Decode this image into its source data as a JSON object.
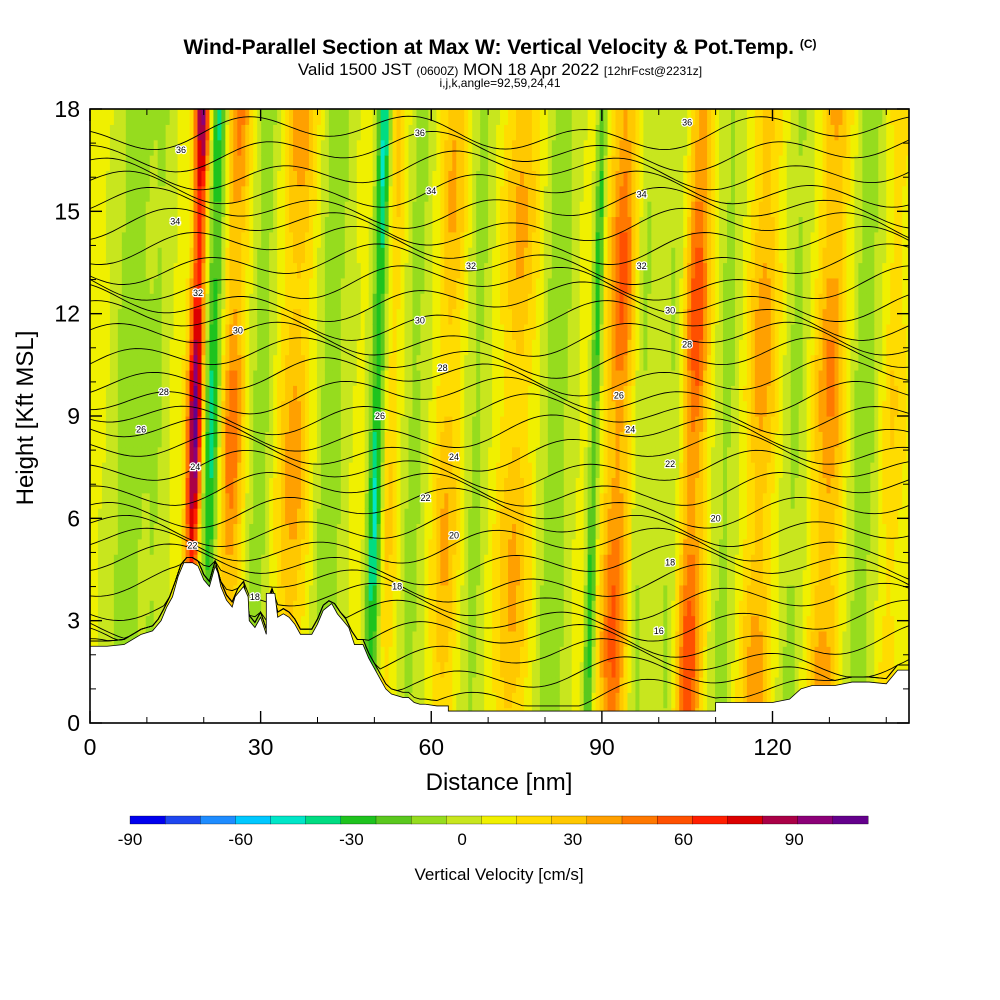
{
  "title": {
    "line1": "Wind-Parallel Section at Max W: Vertical Velocity & Pot.Temp.",
    "copyright": "(C)",
    "line2_a": "Valid 1500 JST",
    "line2_b": "(0600Z)",
    "line2_c": "MON 18 Apr 2022",
    "line2_d": "[12hrFcst@2231z]",
    "line3": "i,j,k,angle=92,59,24,41"
  },
  "chart_data": {
    "type": "heatmap",
    "xlabel": "Distance [nm]",
    "ylabel": "Height [Kft MSL]",
    "xlim": [
      0,
      144
    ],
    "ylim": [
      0,
      18
    ],
    "xticks": [
      0,
      30,
      60,
      90,
      120
    ],
    "yticks": [
      0,
      3,
      6,
      9,
      12,
      15,
      18
    ],
    "colorbar": {
      "label": "Vertical Velocity [cm/s]",
      "range": [
        -90,
        110
      ],
      "ticks": [
        -90,
        -60,
        -30,
        0,
        30,
        60,
        90
      ],
      "colors": [
        "#0000ee",
        "#1e46f0",
        "#1e8cff",
        "#00c8ff",
        "#00e6c8",
        "#00dc82",
        "#1ec31e",
        "#5ac81e",
        "#96dc1e",
        "#c8e61e",
        "#f0f000",
        "#ffdc00",
        "#ffc800",
        "#ffa000",
        "#ff7800",
        "#ff5000",
        "#ff1e00",
        "#dc0000",
        "#aa0046",
        "#8c0078",
        "#64008c"
      ]
    },
    "velocity_bands": [
      {
        "x": 7,
        "w": 3.5,
        "v": -25
      },
      {
        "x": 12,
        "w": 2,
        "v": -15
      },
      {
        "x": 18.5,
        "w": 1.3,
        "v": 95
      },
      {
        "x": 21.5,
        "w": 1.6,
        "v": -55
      },
      {
        "x": 25,
        "w": 2.5,
        "v": 40
      },
      {
        "x": 30,
        "w": 3,
        "v": -25
      },
      {
        "x": 36,
        "w": 3.5,
        "v": 30
      },
      {
        "x": 42,
        "w": 3.5,
        "v": -25
      },
      {
        "x": 50.5,
        "w": 1.3,
        "v": -60
      },
      {
        "x": 53,
        "w": 2,
        "v": 20
      },
      {
        "x": 57,
        "w": 3,
        "v": -20
      },
      {
        "x": 63,
        "w": 2.5,
        "v": 25
      },
      {
        "x": 68,
        "w": 2.5,
        "v": -20
      },
      {
        "x": 75,
        "w": 3,
        "v": 25
      },
      {
        "x": 82,
        "w": 3,
        "v": -25
      },
      {
        "x": 88.8,
        "w": 0.9,
        "v": -45
      },
      {
        "x": 93,
        "w": 2.5,
        "v": 45
      },
      {
        "x": 97,
        "w": 2,
        "v": -20
      },
      {
        "x": 103,
        "w": 2.5,
        "v": -25
      },
      {
        "x": 106,
        "w": 2.5,
        "v": 55
      },
      {
        "x": 112,
        "w": 3,
        "v": -20
      },
      {
        "x": 118,
        "w": 3,
        "v": 30
      },
      {
        "x": 124,
        "w": 3,
        "v": -20
      },
      {
        "x": 130,
        "w": 3,
        "v": 35
      },
      {
        "x": 136,
        "w": 3,
        "v": -25
      },
      {
        "x": 141,
        "w": 2,
        "v": 15
      }
    ],
    "background_velocity": 12,
    "terrain": [
      [
        0,
        2.25
      ],
      [
        3,
        2.25
      ],
      [
        6,
        2.3
      ],
      [
        9,
        2.6
      ],
      [
        11,
        2.7
      ],
      [
        12.5,
        3.0
      ],
      [
        13.5,
        3.4
      ],
      [
        14.5,
        3.7
      ],
      [
        15.5,
        4.3
      ],
      [
        16.5,
        4.7
      ],
      [
        18,
        4.7
      ],
      [
        19,
        4.6
      ],
      [
        20,
        4.2
      ],
      [
        21,
        4.0
      ],
      [
        22,
        4.6
      ],
      [
        22.5,
        4.4
      ],
      [
        23,
        4.0
      ],
      [
        24,
        3.6
      ],
      [
        25,
        3.4
      ],
      [
        25.5,
        3.7
      ],
      [
        26,
        3.8
      ],
      [
        27,
        4.0
      ],
      [
        27.8,
        3.7
      ],
      [
        28,
        3.0
      ],
      [
        29,
        2.8
      ],
      [
        30,
        3.1
      ],
      [
        31,
        2.6
      ],
      [
        31,
        3.8
      ],
      [
        32.5,
        3.8
      ],
      [
        33,
        3.1
      ],
      [
        34,
        3.2
      ],
      [
        35,
        3.1
      ],
      [
        36,
        2.9
      ],
      [
        37,
        2.6
      ],
      [
        38,
        2.6
      ],
      [
        39,
        2.6
      ],
      [
        40,
        2.9
      ],
      [
        41,
        3.3
      ],
      [
        42.5,
        3.5
      ],
      [
        43.5,
        3.2
      ],
      [
        44.5,
        3.0
      ],
      [
        45.5,
        2.8
      ],
      [
        46.5,
        2.3
      ],
      [
        48,
        2.3
      ],
      [
        49,
        1.9
      ],
      [
        50,
        1.6
      ],
      [
        51,
        1.3
      ],
      [
        52,
        1.0
      ],
      [
        53,
        0.85
      ],
      [
        55,
        0.75
      ],
      [
        56,
        0.75
      ],
      [
        57,
        0.6
      ],
      [
        58,
        0.55
      ],
      [
        59,
        0.55
      ],
      [
        61,
        0.5
      ],
      [
        63,
        0.5
      ],
      [
        63,
        0.35
      ],
      [
        80,
        0.35
      ],
      [
        100,
        0.35
      ],
      [
        110,
        0.35
      ],
      [
        110,
        0.6
      ],
      [
        115,
        0.6
      ],
      [
        120,
        0.6
      ],
      [
        123,
        0.7
      ],
      [
        125,
        1.0
      ],
      [
        127,
        1.1
      ],
      [
        131,
        1.1
      ],
      [
        134,
        1.2
      ],
      [
        137,
        1.2
      ],
      [
        140,
        1.15
      ],
      [
        142,
        1.55
      ],
      [
        144,
        1.55
      ]
    ],
    "isentrope_values": [
      16,
      18,
      20,
      22,
      24,
      26,
      28,
      30,
      32,
      34,
      36
    ],
    "contour_labels": [
      {
        "text": "36",
        "x": 16,
        "y": 16.8
      },
      {
        "text": "36",
        "x": 58,
        "y": 17.3
      },
      {
        "text": "36",
        "x": 105,
        "y": 17.6
      },
      {
        "text": "34",
        "x": 15,
        "y": 14.7
      },
      {
        "text": "34",
        "x": 60,
        "y": 15.6
      },
      {
        "text": "34",
        "x": 97,
        "y": 15.5
      },
      {
        "text": "32",
        "x": 19,
        "y": 12.6
      },
      {
        "text": "32",
        "x": 67,
        "y": 13.4
      },
      {
        "text": "32",
        "x": 97,
        "y": 13.4
      },
      {
        "text": "30",
        "x": 26,
        "y": 11.5
      },
      {
        "text": "30",
        "x": 58,
        "y": 11.8
      },
      {
        "text": "30",
        "x": 102,
        "y": 12.1
      },
      {
        "text": "28",
        "x": 13,
        "y": 9.7
      },
      {
        "text": "28",
        "x": 62,
        "y": 10.4
      },
      {
        "text": "28",
        "x": 105,
        "y": 11.1
      },
      {
        "text": "26",
        "x": 9,
        "y": 8.6
      },
      {
        "text": "26",
        "x": 51,
        "y": 9.0
      },
      {
        "text": "26",
        "x": 93,
        "y": 9.6
      },
      {
        "text": "24",
        "x": 18.5,
        "y": 7.5
      },
      {
        "text": "24",
        "x": 64,
        "y": 7.8
      },
      {
        "text": "24",
        "x": 95,
        "y": 8.6
      },
      {
        "text": "22",
        "x": 18,
        "y": 5.2
      },
      {
        "text": "22",
        "x": 59,
        "y": 6.6
      },
      {
        "text": "22",
        "x": 102,
        "y": 7.6
      },
      {
        "text": "20",
        "x": 64,
        "y": 5.5
      },
      {
        "text": "20",
        "x": 110,
        "y": 6.0
      },
      {
        "text": "18",
        "x": 29,
        "y": 3.7
      },
      {
        "text": "18",
        "x": 54,
        "y": 4.0
      },
      {
        "text": "18",
        "x": 102,
        "y": 4.7
      },
      {
        "text": "16",
        "x": 100,
        "y": 2.7
      }
    ]
  }
}
